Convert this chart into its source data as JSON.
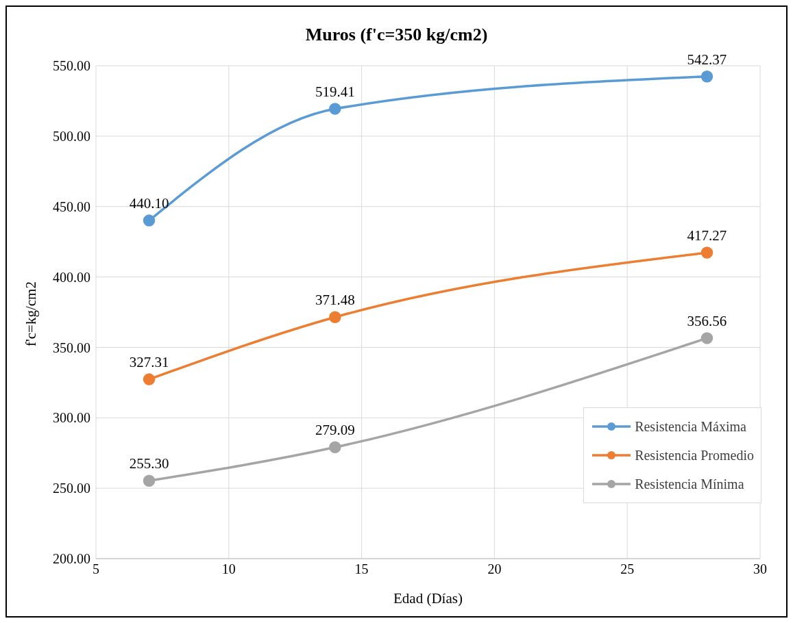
{
  "chart_data": {
    "type": "line",
    "title": "Muros (f'c=350 kg/cm2)",
    "xlabel": "Edad (Días)",
    "ylabel": "f'c=kg/cm2",
    "x": [
      7,
      14,
      28
    ],
    "series": [
      {
        "name": "Resistencia Máxima",
        "color": "#5b9bd5",
        "values": [
          440.1,
          519.41,
          542.37
        ],
        "value_labels": [
          "440.10",
          "519.41",
          "542.37"
        ]
      },
      {
        "name": "Resistencia Promedio",
        "color": "#ed7d31",
        "values": [
          327.31,
          371.48,
          417.27
        ],
        "value_labels": [
          "327.31",
          "371.48",
          "417.27"
        ]
      },
      {
        "name": "Resistencia Mínima",
        "color": "#a5a5a5",
        "values": [
          255.3,
          279.09,
          356.56
        ],
        "value_labels": [
          "255.30",
          "279.09",
          "356.56"
        ]
      }
    ],
    "xlim": [
      5,
      30
    ],
    "xticks": [
      5,
      10,
      15,
      20,
      25,
      30
    ],
    "ylim": [
      200,
      550
    ],
    "yticks": [
      {
        "value": 200,
        "label": "200.00"
      },
      {
        "value": 250,
        "label": "250.00"
      },
      {
        "value": 300,
        "label": "300.00"
      },
      {
        "value": 350,
        "label": "350.00"
      },
      {
        "value": 400,
        "label": "400.00"
      },
      {
        "value": 450,
        "label": "450.00"
      },
      {
        "value": 500,
        "label": "500.00"
      },
      {
        "value": 550,
        "label": "550.00"
      }
    ],
    "grid": true,
    "legend": "bottom right",
    "marker": "circle",
    "line_style": "solid"
  }
}
